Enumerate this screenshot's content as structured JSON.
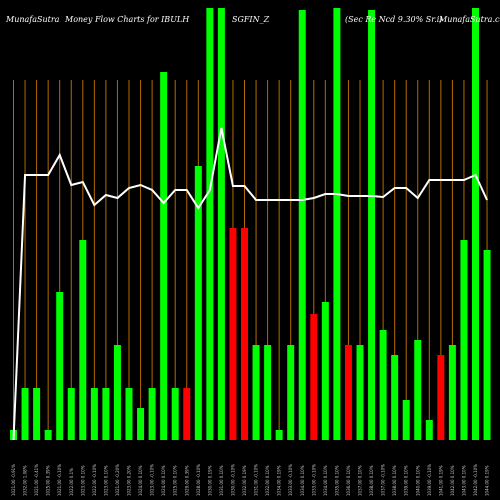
{
  "header": {
    "site": "MunafaSutra",
    "subtitle": "Money Flow  Charts for IBULH",
    "symbol": "SGFIN_Z",
    "description": "(Sec Re    Ncd 9.30% Sr.i)",
    "watermark": "MunafaSutra.com"
  },
  "colors": {
    "background": "#000000",
    "up": "#00ff00",
    "down": "#ff0000",
    "grid": "#b26b00",
    "line": "#ffffff"
  },
  "chart_data": {
    "type": "bar",
    "title": "MunafaSutra  Money Flow  Charts for IBULH  SGFIN_Z  (Sec Re    Ncd 9.30% Sr.i) MunafaSutra.com",
    "xlabel": "",
    "ylabel": "",
    "grid": "vertical",
    "ylim": [
      0,
      440
    ],
    "categories": [
      "1021.00 -0.91%",
      "1032.00 1.08%",
      "1021.00 -0.41%",
      "1025.00 0.39%",
      "1021.00 -0.10%",
      "1022.00 0.1%",
      "1023.00 0.10%",
      "1022.00 -0.10%",
      "1023.00 0.10%",
      "1021.00 -0.20%",
      "1023.00 0.20%",
      "1024.00 0.10%",
      "1023.00 -0.10%",
      "1024.00 0.10%",
      "1025.00 0.10%",
      "1029.00 0.39%",
      "1028.00 -0.10%",
      "1030.00 0.19%",
      "1031.00 0.10%",
      "1030.00 -0.10%",
      "1032.00 0.19%",
      "1031.00 -0.10%",
      "1032.00 0.10%",
      "1034.00 0.19%",
      "1033.00 -0.10%",
      "1034.00 0.10%",
      "1033.00 -0.10%",
      "1034.00 0.10%",
      "1035.00 0.10%",
      "1036.00 0.10%",
      "1037.00 0.10%",
      "1038.00 0.10%",
      "1037.00 -0.10%",
      "1038.00 0.10%",
      "1039.00 0.10%",
      "1040.00 0.10%",
      "1039.00 -0.10%",
      "1041.00 0.19%",
      "1042.00 0.10%",
      "1043.00 0.10%",
      "1042.00 -0.10%",
      "1044.00 0.19%"
    ],
    "series": [
      {
        "values": [
          10,
          52,
          52,
          10,
          148,
          52,
          200,
          52,
          52,
          95,
          52,
          32,
          52,
          368,
          52,
          52,
          274,
          432,
          432,
          212,
          212,
          95,
          95,
          10,
          95,
          430,
          126,
          138,
          432,
          95,
          95,
          430,
          110,
          85,
          40,
          100,
          20,
          85,
          95,
          200,
          432,
          190
        ],
        "direction": [
          "up",
          "up",
          "up",
          "up",
          "up",
          "up",
          "up",
          "up",
          "up",
          "up",
          "up",
          "up",
          "up",
          "up",
          "up",
          "down",
          "up",
          "up",
          "up",
          "down",
          "down",
          "up",
          "up",
          "up",
          "up",
          "up",
          "down",
          "up",
          "up",
          "down",
          "up",
          "up",
          "up",
          "up",
          "up",
          "up",
          "up",
          "down",
          "up",
          "up",
          "up",
          "up"
        ]
      },
      {
        "type": "line",
        "values": [
          0,
          265,
          265,
          265,
          285,
          255,
          258,
          235,
          245,
          242,
          252,
          255,
          250,
          237,
          250,
          250,
          232,
          250,
          312,
          254,
          254,
          240,
          240,
          240,
          240,
          240,
          242,
          246,
          246,
          244,
          244,
          244,
          243,
          252,
          252,
          242,
          260,
          260,
          260,
          260,
          265,
          240
        ]
      }
    ]
  }
}
